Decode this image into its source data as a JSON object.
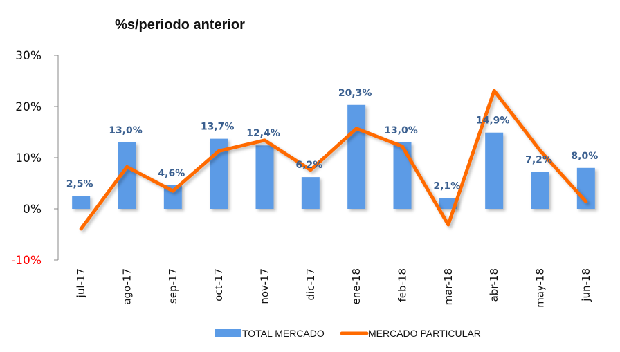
{
  "chart_data": {
    "type": "bar",
    "title": "%s/periodo anterior",
    "xlabel": "",
    "ylabel": "",
    "ylim": [
      -10,
      30
    ],
    "yticks": [
      -10,
      0,
      10,
      20,
      30
    ],
    "ytick_labels": [
      "-10%",
      "0%",
      "10%",
      "20%",
      "30%"
    ],
    "grid": false,
    "legend_position": "bottom",
    "categories": [
      "jul-17",
      "ago-17",
      "sep-17",
      "oct-17",
      "nov-17",
      "dic-17",
      "ene-18",
      "feb-18",
      "mar-18",
      "abr-18",
      "may-18",
      "jun-18"
    ],
    "series": [
      {
        "name": "TOTAL MERCADO",
        "type": "bar",
        "color": "#5b9be6",
        "values": [
          2.5,
          13.0,
          4.6,
          13.7,
          12.4,
          6.2,
          20.3,
          13.0,
          2.1,
          14.9,
          7.2,
          8.0
        ],
        "labels": [
          "2,5%",
          "13,0%",
          "4,6%",
          "13,7%",
          "12,4%",
          "6,2%",
          "20,3%",
          "13,0%",
          "2,1%",
          "14,9%",
          "7,2%",
          "8,0%"
        ]
      },
      {
        "name": "MERCADO PARTICULAR",
        "type": "line",
        "color": "#ff6a00",
        "values": [
          -3.9,
          8.2,
          3.5,
          11.3,
          13.4,
          7.6,
          15.7,
          12.2,
          -3.1,
          23.1,
          11.4,
          1.4
        ]
      }
    ],
    "colors": {
      "negative_tick": "#ff0000",
      "data_label": "#3a5f8f"
    }
  }
}
